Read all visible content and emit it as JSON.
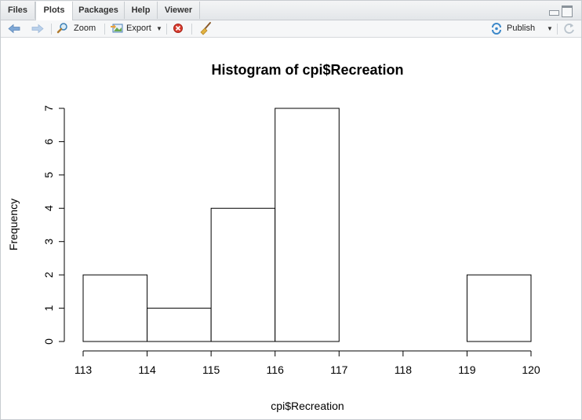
{
  "tabs": [
    {
      "label": "Files"
    },
    {
      "label": "Plots"
    },
    {
      "label": "Packages"
    },
    {
      "label": "Help"
    },
    {
      "label": "Viewer"
    }
  ],
  "toolbar": {
    "zoom_label": "Zoom",
    "export_label": "Export",
    "publish_label": "Publish"
  },
  "chart_data": {
    "type": "bar",
    "title": "Histogram of cpi$Recreation",
    "xlabel": "cpi$Recreation",
    "ylabel": "Frequency",
    "bins": [
      {
        "from": 113,
        "to": 114,
        "count": 2
      },
      {
        "from": 114,
        "to": 115,
        "count": 1
      },
      {
        "from": 115,
        "to": 116,
        "count": 4
      },
      {
        "from": 116,
        "to": 117,
        "count": 7
      },
      {
        "from": 117,
        "to": 118,
        "count": 0
      },
      {
        "from": 118,
        "to": 119,
        "count": 0
      },
      {
        "from": 119,
        "to": 120,
        "count": 2
      }
    ],
    "xlim": [
      113,
      120
    ],
    "ylim": [
      0,
      7
    ],
    "x_ticks": [
      "113",
      "114",
      "115",
      "116",
      "117",
      "118",
      "119",
      "120"
    ],
    "y_ticks": [
      "0",
      "1",
      "2",
      "3",
      "4",
      "5",
      "6",
      "7"
    ],
    "grid": false,
    "bar_fill": "#ffffff",
    "bar_stroke": "#000000"
  }
}
